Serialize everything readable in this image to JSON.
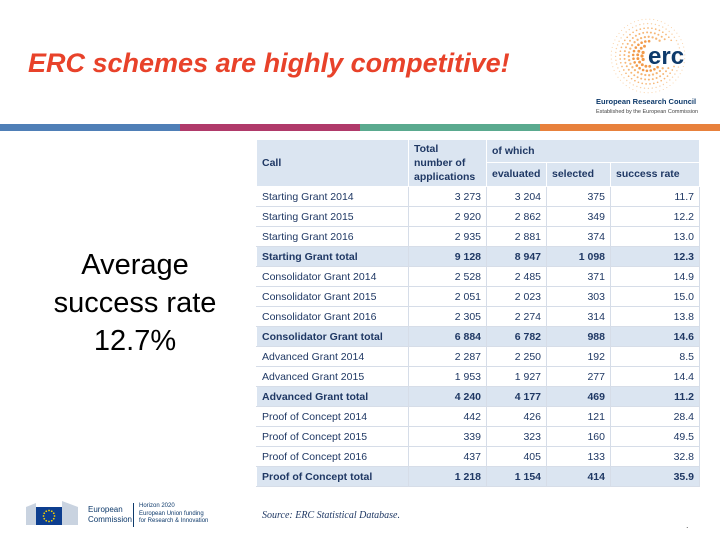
{
  "slide": {
    "title": "ERC schemes are highly competitive!",
    "average": [
      "Average",
      "success rate",
      "12.7%"
    ]
  },
  "logo": {
    "text": "erc",
    "name": "European Research Council",
    "tagline": "Established by the European Commission"
  },
  "colors": {
    "title": "#e8422a",
    "stripe": [
      "#4f7fb7",
      "#b03a6a",
      "#5aaa8f",
      "#e8813c"
    ],
    "header_bg": "#dbe5f1",
    "text": "#1f3864"
  },
  "table": {
    "headers": {
      "call": "Call",
      "total_apps": [
        "Total",
        "number of",
        "applications"
      ],
      "of_which": "of which",
      "evaluated": "evaluated",
      "selected": "selected",
      "success_rate": "success rate"
    },
    "rows": [
      {
        "call": "Starting Grant 2014",
        "total": "3 273",
        "evaluated": "3 204",
        "selected": "375",
        "rate": "11.7",
        "is_total": false
      },
      {
        "call": "Starting Grant 2015",
        "total": "2 920",
        "evaluated": "2 862",
        "selected": "349",
        "rate": "12.2",
        "is_total": false
      },
      {
        "call": "Starting Grant 2016",
        "total": "2 935",
        "evaluated": "2 881",
        "selected": "374",
        "rate": "13.0",
        "is_total": false
      },
      {
        "call": "Starting Grant total",
        "total": "9 128",
        "evaluated": "8 947",
        "selected": "1 098",
        "rate": "12.3",
        "is_total": true
      },
      {
        "call": "Consolidator Grant 2014",
        "total": "2 528",
        "evaluated": "2 485",
        "selected": "371",
        "rate": "14.9",
        "is_total": false
      },
      {
        "call": "Consolidator Grant 2015",
        "total": "2 051",
        "evaluated": "2 023",
        "selected": "303",
        "rate": "15.0",
        "is_total": false
      },
      {
        "call": "Consolidator Grant 2016",
        "total": "2 305",
        "evaluated": "2 274",
        "selected": "314",
        "rate": "13.8",
        "is_total": false
      },
      {
        "call": "Consolidator Grant total",
        "total": "6 884",
        "evaluated": "6 782",
        "selected": "988",
        "rate": "14.6",
        "is_total": true
      },
      {
        "call": "Advanced Grant 2014",
        "total": "2 287",
        "evaluated": "2 250",
        "selected": "192",
        "rate": "8.5",
        "is_total": false
      },
      {
        "call": "Advanced Grant 2015",
        "total": "1 953",
        "evaluated": "1 927",
        "selected": "277",
        "rate": "14.4",
        "is_total": false
      },
      {
        "call": "Advanced Grant total",
        "total": "4 240",
        "evaluated": "4 177",
        "selected": "469",
        "rate": "11.2",
        "is_total": true
      },
      {
        "call": "Proof of Concept 2014",
        "total": "442",
        "evaluated": "426",
        "selected": "121",
        "rate": "28.4",
        "is_total": false
      },
      {
        "call": "Proof of Concept 2015",
        "total": "339",
        "evaluated": "323",
        "selected": "160",
        "rate": "49.5",
        "is_total": false
      },
      {
        "call": "Proof of Concept 2016",
        "total": "437",
        "evaluated": "405",
        "selected": "133",
        "rate": "32.8",
        "is_total": false
      },
      {
        "call": "Proof of Concept total",
        "total": "1 218",
        "evaluated": "1 154",
        "selected": "414",
        "rate": "35.9",
        "is_total": true
      }
    ],
    "source": "Source: ERC Statistical Database."
  },
  "footer": {
    "ec_name": [
      "European",
      "Commission"
    ],
    "h2020": [
      "Horizon 2020",
      "European Union funding",
      "for Research & Innovation"
    ]
  }
}
